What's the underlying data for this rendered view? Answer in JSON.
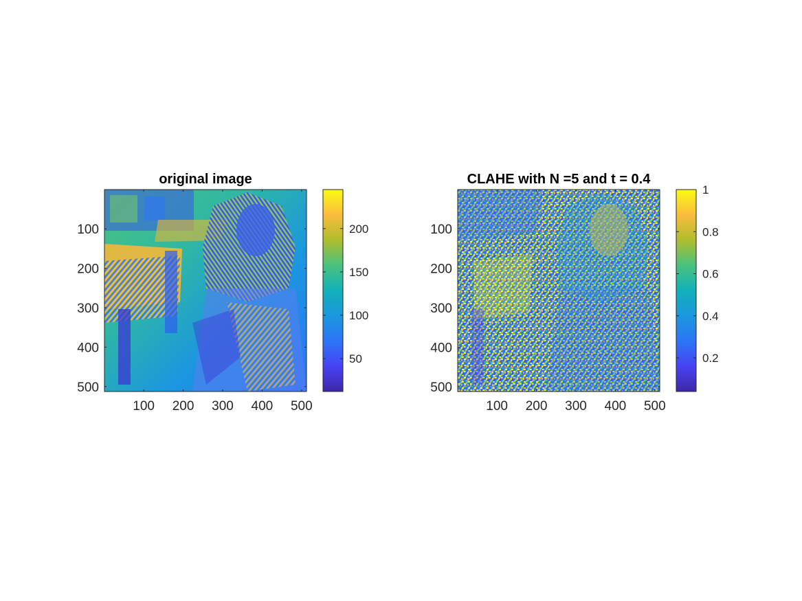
{
  "figure": {
    "background": "#ffffff",
    "colormap": "parula"
  },
  "chart_data": [
    {
      "type": "heatmap",
      "title": "original image",
      "xlabel": "",
      "ylabel": "",
      "xlim": [
        1,
        512
      ],
      "ylim": [
        512,
        1
      ],
      "y_direction": "reversed",
      "xticks": [
        100,
        200,
        300,
        400,
        500
      ],
      "yticks": [
        100,
        200,
        300,
        400,
        500
      ],
      "colorbar": {
        "clim": [
          12,
          245
        ],
        "ticks": [
          50,
          100,
          150,
          200
        ],
        "position": "right"
      },
      "grid": false
    },
    {
      "type": "heatmap",
      "title": "CLAHE with N =5 and t = 0.4",
      "xlabel": "",
      "ylabel": "",
      "xlim": [
        1,
        512
      ],
      "ylim": [
        512,
        1
      ],
      "y_direction": "reversed",
      "xticks": [
        100,
        200,
        300,
        400,
        500
      ],
      "yticks": [
        100,
        200,
        300,
        400,
        500
      ],
      "colorbar": {
        "clim": [
          0.04,
          1
        ],
        "ticks": [
          0.2,
          0.4,
          0.6,
          0.8,
          1
        ],
        "position": "right"
      },
      "grid": false
    }
  ]
}
